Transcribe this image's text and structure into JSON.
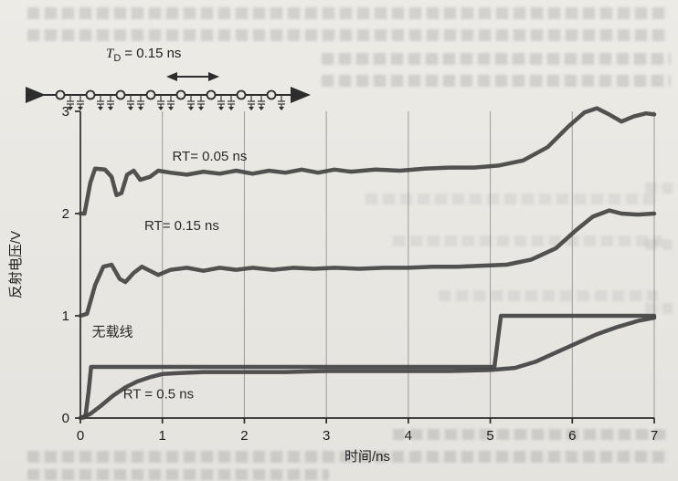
{
  "schematic": {
    "delay_symbol": "T",
    "delay_subscript": "D",
    "delay_value": "= 0.15 ns",
    "load_count": 8
  },
  "chart_data": {
    "type": "line",
    "title": "",
    "xlabel": "时间/ns",
    "ylabel": "反射电压/V",
    "xlim": [
      0,
      7
    ],
    "ylim": [
      0,
      3
    ],
    "xticks": [
      0,
      1,
      2,
      3,
      4,
      5,
      6,
      7
    ],
    "yticks": [
      0,
      1,
      2,
      3
    ],
    "grid": "vertical-only",
    "legend_position": "inline-labels",
    "series": [
      {
        "name": "RT= 0.05 ns",
        "label_pos": [
          1.12,
          2.52
        ],
        "points": [
          [
            0,
            2.0
          ],
          [
            0.05,
            2.0
          ],
          [
            0.12,
            2.3
          ],
          [
            0.18,
            2.44
          ],
          [
            0.3,
            2.43
          ],
          [
            0.38,
            2.36
          ],
          [
            0.44,
            2.18
          ],
          [
            0.5,
            2.2
          ],
          [
            0.57,
            2.38
          ],
          [
            0.65,
            2.42
          ],
          [
            0.73,
            2.33
          ],
          [
            0.85,
            2.36
          ],
          [
            0.95,
            2.42
          ],
          [
            1.1,
            2.4
          ],
          [
            1.3,
            2.38
          ],
          [
            1.5,
            2.41
          ],
          [
            1.7,
            2.39
          ],
          [
            1.9,
            2.42
          ],
          [
            2.1,
            2.39
          ],
          [
            2.3,
            2.42
          ],
          [
            2.5,
            2.4
          ],
          [
            2.7,
            2.43
          ],
          [
            2.9,
            2.4
          ],
          [
            3.1,
            2.43
          ],
          [
            3.3,
            2.41
          ],
          [
            3.6,
            2.43
          ],
          [
            3.9,
            2.42
          ],
          [
            4.2,
            2.44
          ],
          [
            4.5,
            2.45
          ],
          [
            4.8,
            2.45
          ],
          [
            5.1,
            2.47
          ],
          [
            5.4,
            2.52
          ],
          [
            5.7,
            2.65
          ],
          [
            5.95,
            2.85
          ],
          [
            6.15,
            2.99
          ],
          [
            6.3,
            3.03
          ],
          [
            6.45,
            2.97
          ],
          [
            6.6,
            2.9
          ],
          [
            6.75,
            2.95
          ],
          [
            6.9,
            2.98
          ],
          [
            7,
            2.97
          ]
        ]
      },
      {
        "name": "RT= 0.15 ns",
        "label_pos": [
          0.78,
          1.84
        ],
        "points": [
          [
            0,
            1.0
          ],
          [
            0.08,
            1.02
          ],
          [
            0.18,
            1.3
          ],
          [
            0.28,
            1.48
          ],
          [
            0.38,
            1.5
          ],
          [
            0.48,
            1.36
          ],
          [
            0.55,
            1.33
          ],
          [
            0.65,
            1.42
          ],
          [
            0.75,
            1.48
          ],
          [
            0.85,
            1.44
          ],
          [
            0.95,
            1.4
          ],
          [
            1.1,
            1.45
          ],
          [
            1.3,
            1.47
          ],
          [
            1.5,
            1.44
          ],
          [
            1.7,
            1.47
          ],
          [
            1.9,
            1.45
          ],
          [
            2.1,
            1.47
          ],
          [
            2.35,
            1.45
          ],
          [
            2.6,
            1.47
          ],
          [
            2.85,
            1.46
          ],
          [
            3.1,
            1.47
          ],
          [
            3.4,
            1.46
          ],
          [
            3.7,
            1.47
          ],
          [
            4.0,
            1.47
          ],
          [
            4.3,
            1.48
          ],
          [
            4.6,
            1.48
          ],
          [
            4.9,
            1.49
          ],
          [
            5.2,
            1.5
          ],
          [
            5.5,
            1.55
          ],
          [
            5.8,
            1.66
          ],
          [
            6.05,
            1.84
          ],
          [
            6.25,
            1.97
          ],
          [
            6.45,
            2.03
          ],
          [
            6.6,
            2.0
          ],
          [
            6.8,
            1.99
          ],
          [
            7,
            2.0
          ]
        ]
      },
      {
        "name": "无载线",
        "label_pos": [
          0.14,
          0.8
        ],
        "points": [
          [
            0,
            0
          ],
          [
            0.06,
            0.01
          ],
          [
            0.1,
            0.26
          ],
          [
            0.13,
            0.5
          ],
          [
            1,
            0.5
          ],
          [
            2,
            0.5
          ],
          [
            3,
            0.5
          ],
          [
            4,
            0.5
          ],
          [
            5.05,
            0.5
          ],
          [
            5.09,
            0.75
          ],
          [
            5.13,
            1.0
          ],
          [
            6,
            1.0
          ],
          [
            7,
            1.0
          ]
        ]
      },
      {
        "name": "RT = 0.5 ns",
        "label_pos": [
          0.52,
          0.19
        ],
        "points": [
          [
            0,
            0
          ],
          [
            0.12,
            0.04
          ],
          [
            0.25,
            0.12
          ],
          [
            0.4,
            0.22
          ],
          [
            0.55,
            0.3
          ],
          [
            0.7,
            0.36
          ],
          [
            0.85,
            0.4
          ],
          [
            1.0,
            0.43
          ],
          [
            1.2,
            0.44
          ],
          [
            1.5,
            0.45
          ],
          [
            2,
            0.45
          ],
          [
            2.5,
            0.45
          ],
          [
            3,
            0.46
          ],
          [
            3.5,
            0.46
          ],
          [
            4,
            0.46
          ],
          [
            4.5,
            0.46
          ],
          [
            5,
            0.47
          ],
          [
            5.3,
            0.49
          ],
          [
            5.55,
            0.55
          ],
          [
            5.8,
            0.64
          ],
          [
            6.05,
            0.73
          ],
          [
            6.3,
            0.82
          ],
          [
            6.55,
            0.89
          ],
          [
            6.8,
            0.95
          ],
          [
            7,
            0.98
          ]
        ]
      }
    ]
  }
}
